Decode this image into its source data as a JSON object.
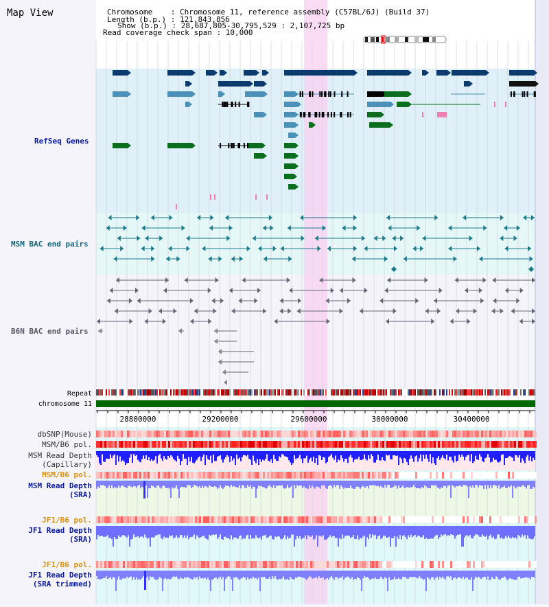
{
  "page_title": "Map View",
  "header": {
    "chromosome_line": "Chromosome    : Chromosome 11, reference assembly (C57BL/6J) (Build 37)",
    "length_line": "Length (b.p.) : 121,843,856",
    "show_line": "Show (b.p.) : 28,687,805-30,795,529 : 2,107,725 bp",
    "coverage_line": "Read coverage check span : 10,000"
  },
  "tracks": {
    "refseq": "RefSeq Genes",
    "msm_bac": "MSM BAC end pairs",
    "b6n_bac": "B6N BAC end pairs",
    "repeat": "Repeat",
    "chromosome": "chromosome 11",
    "dbsnp": "dbSNP(Mouse)",
    "msm_b6_pol": "MSM/B6 pol.",
    "msm_depth_cap_1": "MSM Read Depth",
    "msm_depth_cap_2": "(Capillary)",
    "msm_b6_pol_2": "MSM/B6 pol.",
    "msm_depth_sra_1": "MSM Read Depth",
    "msm_depth_sra_2": "(SRA)",
    "jf1_b6_pol": "JF1/B6 pol.",
    "jf1_depth_sra_1": "JF1 Read Depth",
    "jf1_depth_sra_2": "(SRA)",
    "jf1_b6_pol_2": "JF1/B6 pol.",
    "jf1_depth_trim_1": "JF1 Read Depth",
    "jf1_depth_trim_2": "(SRA trimmed)"
  },
  "axis": {
    "ticks": [
      "28800000",
      "29200000",
      "29600000",
      "30000000",
      "30400000"
    ]
  },
  "colors": {
    "refseq_bg": "#dff0f8",
    "bac_bg": "#e6f7f7",
    "highlight": "#f8d0f0",
    "gene_dark": "#0a3a6e",
    "gene_mid": "#4a90b8",
    "gene_green": "#0a6e1e",
    "chromosome_bar": "#006600",
    "track_label_blue": "#0a1aa0",
    "track_label_teal": "#116677",
    "track_label_orange": "#e09000",
    "depth_blue": "#1f1fff",
    "depth_light": "#7f7fff"
  }
}
